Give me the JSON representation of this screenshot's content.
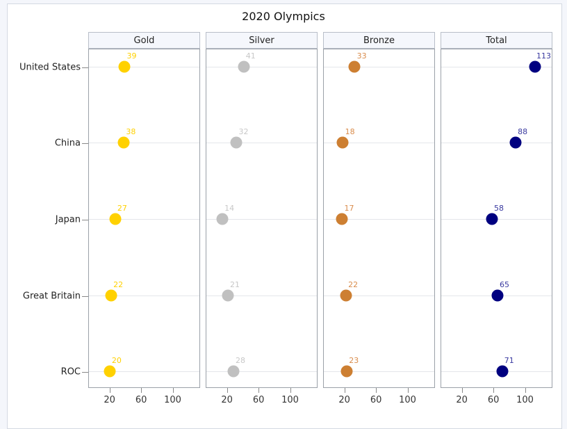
{
  "chart_data": {
    "type": "scatter",
    "title": "2020 Olympics",
    "categories": [
      "United States",
      "China",
      "Japan",
      "Great Britain",
      "ROC"
    ],
    "panels": [
      "Gold",
      "Silver",
      "Bronze",
      "Total"
    ],
    "series": [
      {
        "name": "Gold",
        "color": "#FFD100",
        "label_color": "#FFD100",
        "values": [
          39,
          38,
          27,
          22,
          20
        ]
      },
      {
        "name": "Silver",
        "color": "#C0C0C0",
        "label_color": "#C8C8C8",
        "values": [
          41,
          32,
          14,
          21,
          28
        ]
      },
      {
        "name": "Bronze",
        "color": "#CD7F32",
        "label_color": "#D98C4C",
        "values": [
          33,
          18,
          17,
          22,
          23
        ]
      },
      {
        "name": "Total",
        "color": "#000080",
        "label_color": "#3A3AA0",
        "values": [
          113,
          88,
          58,
          65,
          71
        ]
      }
    ],
    "x_ticks": [
      20,
      60,
      100
    ],
    "xlabel": "",
    "ylabel": "",
    "xlim": [
      -6,
      135
    ],
    "grid": "horizontal",
    "legend": "none"
  },
  "title": "2020 Olympics",
  "x_tick_labels": [
    "20",
    "60",
    "100"
  ]
}
